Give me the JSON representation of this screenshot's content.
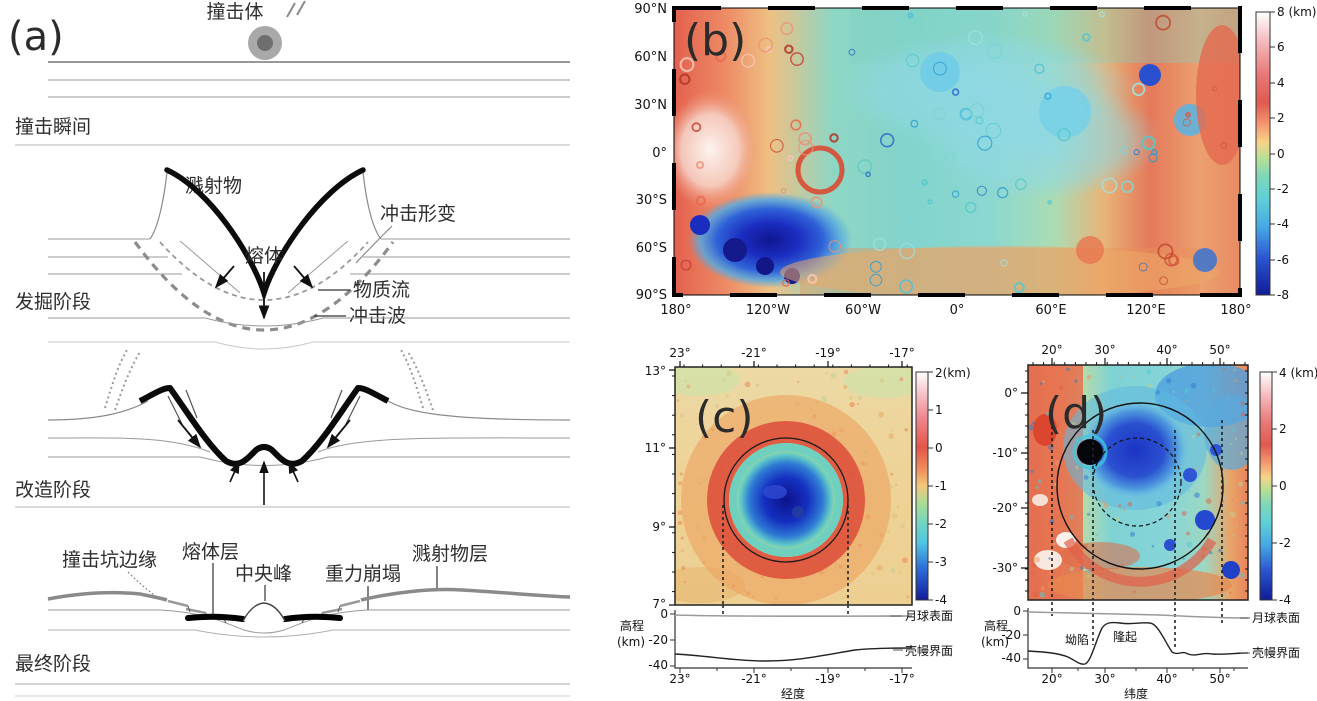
{
  "panel_a": {
    "label": "(a)",
    "impactor": "撞击体",
    "stage_moment": "撞击瞬间",
    "stage_excavation": "发掘阶段",
    "stage_modification": "改造阶段",
    "stage_final": "最终阶段",
    "ejecta": "溅射物",
    "shock_deformation": "冲击形变",
    "melt": "熔体",
    "material_flow": "物质流",
    "shock_wave": "冲击波",
    "crater_rim": "撞击坑边缘",
    "melt_layer": "熔体层",
    "central_peak": "中央峰",
    "gravity_collapse": "重力崩塌",
    "ejecta_layer": "溅射物层"
  },
  "panel_b": {
    "label": "(b)",
    "lat_ticks": [
      "90°N",
      "60°N",
      "30°N",
      "0°",
      "30°S",
      "60°S",
      "90°S"
    ],
    "lon_ticks": [
      "180°",
      "120°W",
      "60°W",
      "0°",
      "60°E",
      "120°E",
      "180°"
    ],
    "colorbar_ticks": [
      "8 (km)",
      "6",
      "4",
      "2",
      "0",
      "-2",
      "-4",
      "-6",
      "-8"
    ]
  },
  "panel_c": {
    "label": "(c)",
    "lon_ticks": [
      "23°",
      "-21°",
      "-19°",
      "-17°"
    ],
    "lat_ticks": [
      "13°",
      "11°",
      "9°",
      "7°"
    ],
    "colorbar_ticks": [
      "2(km)",
      "1",
      "0",
      "-1",
      "-2",
      "-3",
      "-4"
    ],
    "profile": {
      "ylabel_line1": "高程",
      "ylabel_line2": "(km)",
      "yticks": [
        "0",
        "-20",
        "-40"
      ],
      "xticks": [
        "23°",
        "-21°",
        "-19°",
        "-17°"
      ],
      "xlabel": "经度",
      "surface_label": "月球表面",
      "moho_label": "壳幔界面"
    }
  },
  "panel_d": {
    "label": "(d)",
    "lon_ticks": [
      "20°",
      "30°",
      "40°",
      "50°"
    ],
    "lat_ticks": [
      "0°",
      "-10°",
      "-20°",
      "-30°"
    ],
    "colorbar_ticks": [
      "4 (km)",
      "2",
      "0",
      "-2",
      "-4"
    ],
    "profile": {
      "ylabel_line1": "高程",
      "ylabel_line2": "(km)",
      "yticks": [
        "0",
        "-20",
        "-40"
      ],
      "xticks": [
        "20°",
        "30°",
        "40°",
        "50°"
      ],
      "xlabel": "纬度",
      "surface_label": "月球表面",
      "moho_label": "壳幔界面",
      "annotation_depression": "坳陷",
      "annotation_uplift": "隆起"
    }
  },
  "colors": {
    "elevation_high": "#ffffff",
    "elevation_red": "#e0564a",
    "elevation_zero_green": "#a9dc96",
    "elevation_low_blue": "#2a50d0",
    "elevation_deepest": "#10188f",
    "diagram_ink": "#2e2e2e"
  },
  "chart_data": [
    {
      "id": "profile_c",
      "type": "line",
      "xlabel": "经度",
      "ylabel": "高程(km)",
      "x_ticks": [
        "23°",
        "-21°",
        "-19°",
        "-17°"
      ],
      "ylim": [
        -40,
        0
      ],
      "series": [
        {
          "name": "月球表面",
          "x": [
            -23,
            -22,
            -21,
            -20,
            -19,
            -18,
            -17
          ],
          "y": [
            0,
            0,
            -0.5,
            -0.5,
            -0.5,
            -0.5,
            -0.5
          ]
        },
        {
          "name": "壳幔界面",
          "x": [
            -23,
            -22,
            -21,
            -20,
            -19,
            -18,
            -17
          ],
          "y": [
            -31,
            -33,
            -36,
            -35,
            -31,
            -27,
            -27
          ]
        }
      ]
    },
    {
      "id": "profile_d",
      "type": "line",
      "xlabel": "纬度",
      "ylabel": "高程(km)",
      "x_ticks": [
        "20°",
        "30°",
        "40°",
        "50°"
      ],
      "ylim": [
        -40,
        0
      ],
      "annotations": [
        "坳陷",
        "隆起"
      ],
      "series": [
        {
          "name": "月球表面",
          "x": [
            18,
            25,
            30,
            35,
            40,
            45,
            50,
            55
          ],
          "y": [
            0,
            -1,
            -1,
            -2,
            -3,
            -4,
            -5,
            -5
          ]
        },
        {
          "name": "壳幔界面",
          "x": [
            18,
            22,
            25,
            27,
            30,
            33,
            37,
            40,
            42,
            44,
            47,
            50,
            55
          ],
          "y": [
            -33,
            -34,
            -45,
            -38,
            -10,
            -9,
            -10,
            -25,
            -36,
            -38,
            -35,
            -36,
            -35
          ]
        }
      ]
    }
  ]
}
